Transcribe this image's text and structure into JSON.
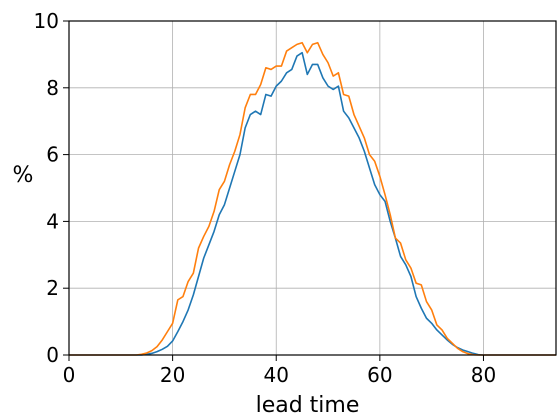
{
  "chart_data": {
    "type": "line",
    "title": "",
    "xlabel": "lead time",
    "ylabel": "%",
    "xlim": [
      0,
      94
    ],
    "ylim": [
      0,
      10
    ],
    "grid": true,
    "xticks": [
      0,
      20,
      40,
      60,
      80
    ],
    "yticks": [
      0,
      2,
      4,
      6,
      8,
      10
    ],
    "x": [
      0,
      1,
      2,
      3,
      4,
      5,
      6,
      7,
      8,
      9,
      10,
      11,
      12,
      13,
      14,
      15,
      16,
      17,
      18,
      19,
      20,
      21,
      22,
      23,
      24,
      25,
      26,
      27,
      28,
      29,
      30,
      31,
      32,
      33,
      34,
      35,
      36,
      37,
      38,
      39,
      40,
      41,
      42,
      43,
      44,
      45,
      46,
      47,
      48,
      49,
      50,
      51,
      52,
      53,
      54,
      55,
      56,
      57,
      58,
      59,
      60,
      61,
      62,
      63,
      64,
      65,
      66,
      67,
      68,
      69,
      70,
      71,
      72,
      73,
      74,
      75,
      76,
      77,
      78,
      79,
      80,
      81,
      82,
      83,
      84,
      85,
      86,
      87,
      88,
      89,
      90,
      91,
      92,
      93,
      94
    ],
    "series": [
      {
        "color": "#1f77b4",
        "values": [
          0,
          0,
          0,
          0,
          0,
          0,
          0,
          0,
          0,
          0,
          0,
          0,
          0,
          0,
          0,
          0.02,
          0.05,
          0.1,
          0.17,
          0.26,
          0.42,
          0.7,
          1.0,
          1.35,
          1.8,
          2.35,
          2.9,
          3.3,
          3.7,
          4.2,
          4.5,
          5.0,
          5.5,
          6.0,
          6.8,
          7.2,
          7.3,
          7.2,
          7.8,
          7.75,
          8.05,
          8.2,
          8.45,
          8.55,
          8.95,
          9.05,
          8.4,
          8.7,
          8.7,
          8.3,
          8.05,
          7.95,
          8.05,
          7.3,
          7.1,
          6.8,
          6.5,
          6.1,
          5.6,
          5.1,
          4.8,
          4.6,
          4.0,
          3.5,
          2.95,
          2.7,
          2.35,
          1.75,
          1.4,
          1.1,
          0.95,
          0.75,
          0.6,
          0.45,
          0.32,
          0.22,
          0.15,
          0.1,
          0.05,
          0.01,
          0,
          0,
          0,
          0,
          0,
          0,
          0,
          0,
          0,
          0,
          0,
          0,
          0,
          0,
          0
        ]
      },
      {
        "color": "#ff7f0e",
        "values": [
          0,
          0,
          0,
          0,
          0,
          0,
          0,
          0,
          0,
          0,
          0,
          0,
          0,
          0,
          0.02,
          0.06,
          0.13,
          0.25,
          0.45,
          0.7,
          0.95,
          1.65,
          1.75,
          2.2,
          2.45,
          3.2,
          3.55,
          3.85,
          4.3,
          4.95,
          5.2,
          5.7,
          6.1,
          6.6,
          7.4,
          7.8,
          7.8,
          8.1,
          8.6,
          8.55,
          8.65,
          8.65,
          9.1,
          9.2,
          9.3,
          9.35,
          9.05,
          9.3,
          9.35,
          9.0,
          8.75,
          8.35,
          8.45,
          7.8,
          7.75,
          7.2,
          6.85,
          6.5,
          6.0,
          5.8,
          5.35,
          4.8,
          4.2,
          3.5,
          3.35,
          2.85,
          2.6,
          2.15,
          2.1,
          1.6,
          1.35,
          0.9,
          0.75,
          0.5,
          0.35,
          0.2,
          0.1,
          0.04,
          0.01,
          0,
          0,
          0,
          0,
          0,
          0,
          0,
          0,
          0,
          0,
          0,
          0,
          0,
          0,
          0,
          0
        ]
      }
    ]
  }
}
